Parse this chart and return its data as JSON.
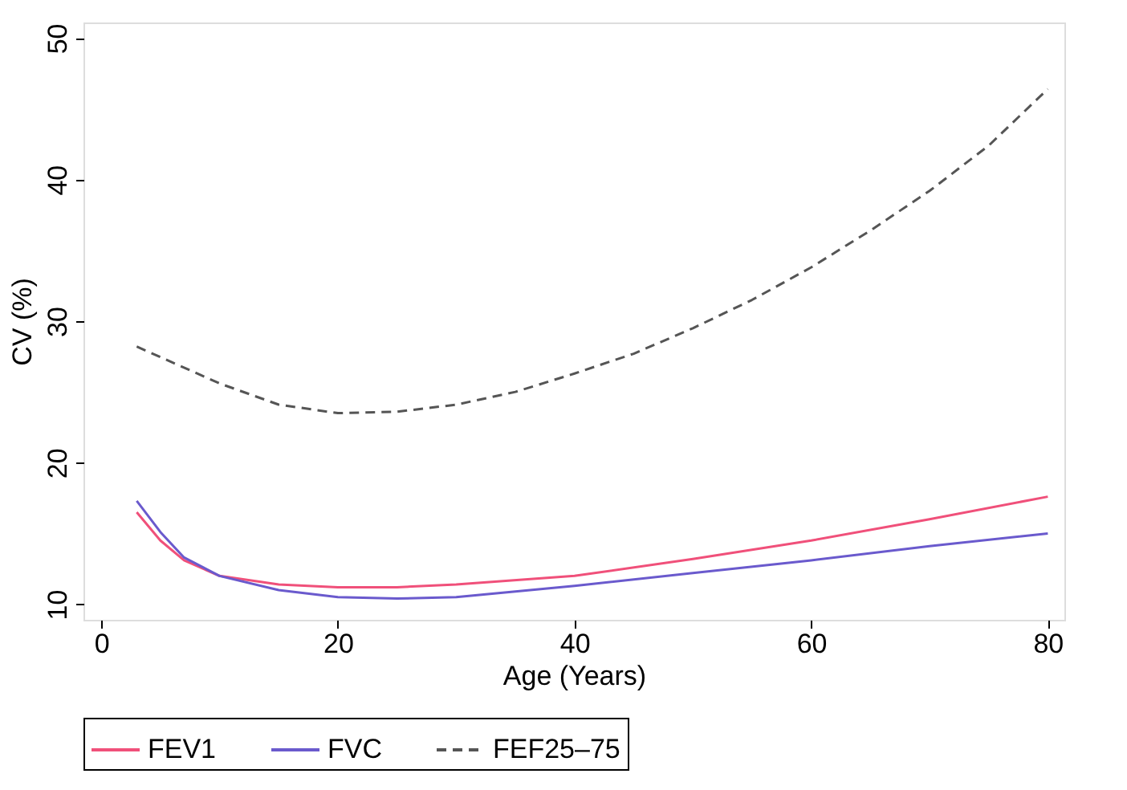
{
  "chart_data": {
    "type": "line",
    "xlabel": "Age (Years)",
    "ylabel": "CV (%)",
    "xlim": [
      -1.5,
      81.4
    ],
    "xticks": [
      0,
      20,
      40,
      60,
      80
    ],
    "ylim": [
      8.9,
      51.1
    ],
    "yticks": [
      10,
      20,
      30,
      40,
      50
    ],
    "grid": false,
    "legend": "bottom",
    "marker": "none",
    "series": [
      {
        "name": "FEV1",
        "color": "#f0507a",
        "line_style": "solid",
        "x": [
          3,
          5,
          7,
          10,
          15,
          20,
          25,
          30,
          40,
          50,
          60,
          70,
          80
        ],
        "values": [
          16.5,
          14.5,
          13.1,
          12.0,
          11.4,
          11.2,
          11.2,
          11.4,
          12.0,
          13.2,
          14.5,
          16.0,
          17.6
        ]
      },
      {
        "name": "FVC",
        "color": "#6a5acd",
        "line_style": "solid",
        "x": [
          3,
          5,
          7,
          10,
          15,
          20,
          25,
          30,
          40,
          50,
          60,
          70,
          80
        ],
        "values": [
          17.3,
          15.1,
          13.3,
          12.0,
          11.0,
          10.5,
          10.4,
          10.5,
          11.3,
          12.2,
          13.1,
          14.1,
          15.0
        ]
      },
      {
        "name": "FEF25–75",
        "color": "#555555",
        "line_style": "dashed",
        "x": [
          3,
          10,
          15,
          20,
          25,
          30,
          35,
          40,
          45,
          50,
          55,
          60,
          65,
          70,
          75,
          80
        ],
        "values": [
          28.2,
          25.6,
          24.1,
          23.5,
          23.6,
          24.1,
          25.0,
          26.3,
          27.7,
          29.5,
          31.5,
          33.8,
          36.4,
          39.2,
          42.4,
          46.4
        ]
      }
    ]
  }
}
